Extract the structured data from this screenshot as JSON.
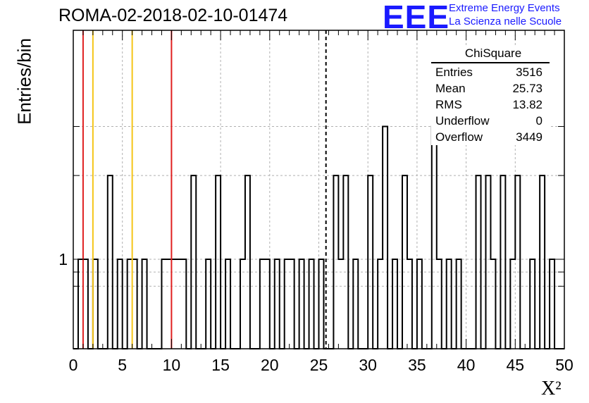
{
  "header": {
    "run_title": "ROMA-02-2018-02-10-01474",
    "logo_mark": "EEE",
    "logo_line1": "Extreme Energy Events",
    "logo_line2": "La Scienza nelle Scuole"
  },
  "stats": {
    "title": "ChiSquare",
    "rows": [
      {
        "label": "Entries",
        "value": "3516"
      },
      {
        "label": "Mean",
        "value": "25.73"
      },
      {
        "label": "RMS",
        "value": "13.82"
      },
      {
        "label": "Underflow",
        "value": "0"
      },
      {
        "label": "Overflow",
        "value": "3449"
      }
    ]
  },
  "colors": {
    "red_line": "#e02020",
    "yellow_line": "#f5c518",
    "histogram": "#000000",
    "grid": "#b0b0b0",
    "logo": "#1a1aff"
  },
  "chart_data": {
    "type": "bar",
    "histogram_style": "step",
    "xlabel": "X²",
    "ylabel": "Entries/bin",
    "xlim": [
      0,
      50
    ],
    "ylog": true,
    "grid": true,
    "bin_width": 0.5,
    "x_ticks": [
      "0",
      "5",
      "10",
      "15",
      "20",
      "25",
      "30",
      "35",
      "40",
      "45",
      "50"
    ],
    "y_tick_labels": [
      "1"
    ],
    "bins": [
      {
        "x": 0.5,
        "count": 1
      },
      {
        "x": 1.0,
        "count": 1
      },
      {
        "x": 2.0,
        "count": 1
      },
      {
        "x": 3.5,
        "count": 2
      },
      {
        "x": 4.5,
        "count": 1
      },
      {
        "x": 5.5,
        "count": 1
      },
      {
        "x": 6.0,
        "count": 1
      },
      {
        "x": 7.0,
        "count": 1
      },
      {
        "x": 9.0,
        "count": 1
      },
      {
        "x": 9.5,
        "count": 1
      },
      {
        "x": 10.0,
        "count": 1
      },
      {
        "x": 10.5,
        "count": 1
      },
      {
        "x": 11.0,
        "count": 1
      },
      {
        "x": 12.0,
        "count": 2
      },
      {
        "x": 13.5,
        "count": 1
      },
      {
        "x": 14.5,
        "count": 2
      },
      {
        "x": 15.5,
        "count": 1
      },
      {
        "x": 17.0,
        "count": 1
      },
      {
        "x": 17.5,
        "count": 2
      },
      {
        "x": 19.0,
        "count": 1
      },
      {
        "x": 19.5,
        "count": 1
      },
      {
        "x": 20.5,
        "count": 1
      },
      {
        "x": 21.5,
        "count": 1
      },
      {
        "x": 22.0,
        "count": 1
      },
      {
        "x": 23.0,
        "count": 1
      },
      {
        "x": 24.0,
        "count": 1
      },
      {
        "x": 25.0,
        "count": 1
      },
      {
        "x": 26.5,
        "count": 2
      },
      {
        "x": 27.0,
        "count": 1
      },
      {
        "x": 27.5,
        "count": 2
      },
      {
        "x": 28.5,
        "count": 1
      },
      {
        "x": 30.0,
        "count": 2
      },
      {
        "x": 31.0,
        "count": 1
      },
      {
        "x": 31.5,
        "count": 3
      },
      {
        "x": 32.5,
        "count": 1
      },
      {
        "x": 33.5,
        "count": 2
      },
      {
        "x": 34.0,
        "count": 1
      },
      {
        "x": 35.0,
        "count": 1
      },
      {
        "x": 36.5,
        "count": 3
      },
      {
        "x": 37.0,
        "count": 1
      },
      {
        "x": 38.0,
        "count": 1
      },
      {
        "x": 39.0,
        "count": 1
      },
      {
        "x": 41.0,
        "count": 2
      },
      {
        "x": 42.0,
        "count": 2
      },
      {
        "x": 42.5,
        "count": 1
      },
      {
        "x": 43.5,
        "count": 2
      },
      {
        "x": 44.5,
        "count": 1
      },
      {
        "x": 45.0,
        "count": 2
      },
      {
        "x": 46.5,
        "count": 1
      },
      {
        "x": 47.5,
        "count": 2
      },
      {
        "x": 48.5,
        "count": 1
      }
    ],
    "vertical_lines": [
      {
        "x": 1.0,
        "style": "red"
      },
      {
        "x": 2.0,
        "style": "yellow"
      },
      {
        "x": 6.0,
        "style": "yellow"
      },
      {
        "x": 10.0,
        "style": "red"
      },
      {
        "x": 25.73,
        "style": "dashed-black"
      }
    ]
  }
}
